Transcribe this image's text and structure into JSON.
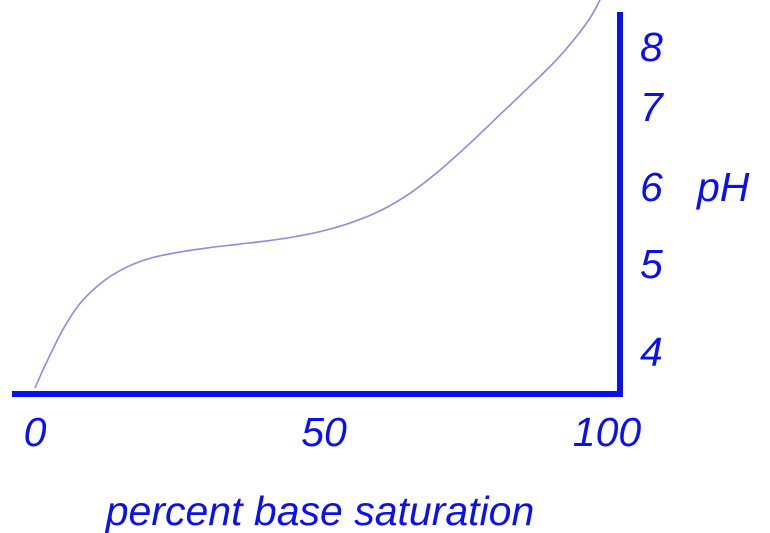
{
  "colors": {
    "axis": "#0a10ee",
    "curve": "#8a8ae8",
    "text": "#0a10ee",
    "background": "#ffffff"
  },
  "chart_data": {
    "type": "line",
    "title": "",
    "xlabel": "percent base saturation",
    "ylabel": "pH",
    "xlim": [
      0,
      100
    ],
    "ylim": [
      3.4,
      8
    ],
    "x_ticks": [
      "0",
      "50",
      "100"
    ],
    "y_ticks": [
      "4",
      "5",
      "6",
      "7",
      "8"
    ],
    "x_tick_values": [
      0,
      50,
      100
    ],
    "y_tick_values": [
      4,
      5,
      6,
      7,
      8
    ],
    "grid": false,
    "y_axis_position": "right",
    "series": [
      {
        "x": [
          0,
          2,
          5,
          8,
          12,
          16,
          20,
          25,
          30,
          35,
          40,
          45,
          50,
          55,
          60,
          65,
          70,
          75,
          80,
          85,
          90,
          93,
          96,
          98,
          99
        ],
        "y": [
          3.45,
          3.75,
          4.15,
          4.45,
          4.7,
          4.86,
          4.96,
          5.03,
          5.08,
          5.12,
          5.16,
          5.21,
          5.28,
          5.38,
          5.52,
          5.72,
          5.98,
          6.28,
          6.6,
          6.92,
          7.25,
          7.48,
          7.75,
          8.0,
          8.2
        ]
      }
    ]
  }
}
